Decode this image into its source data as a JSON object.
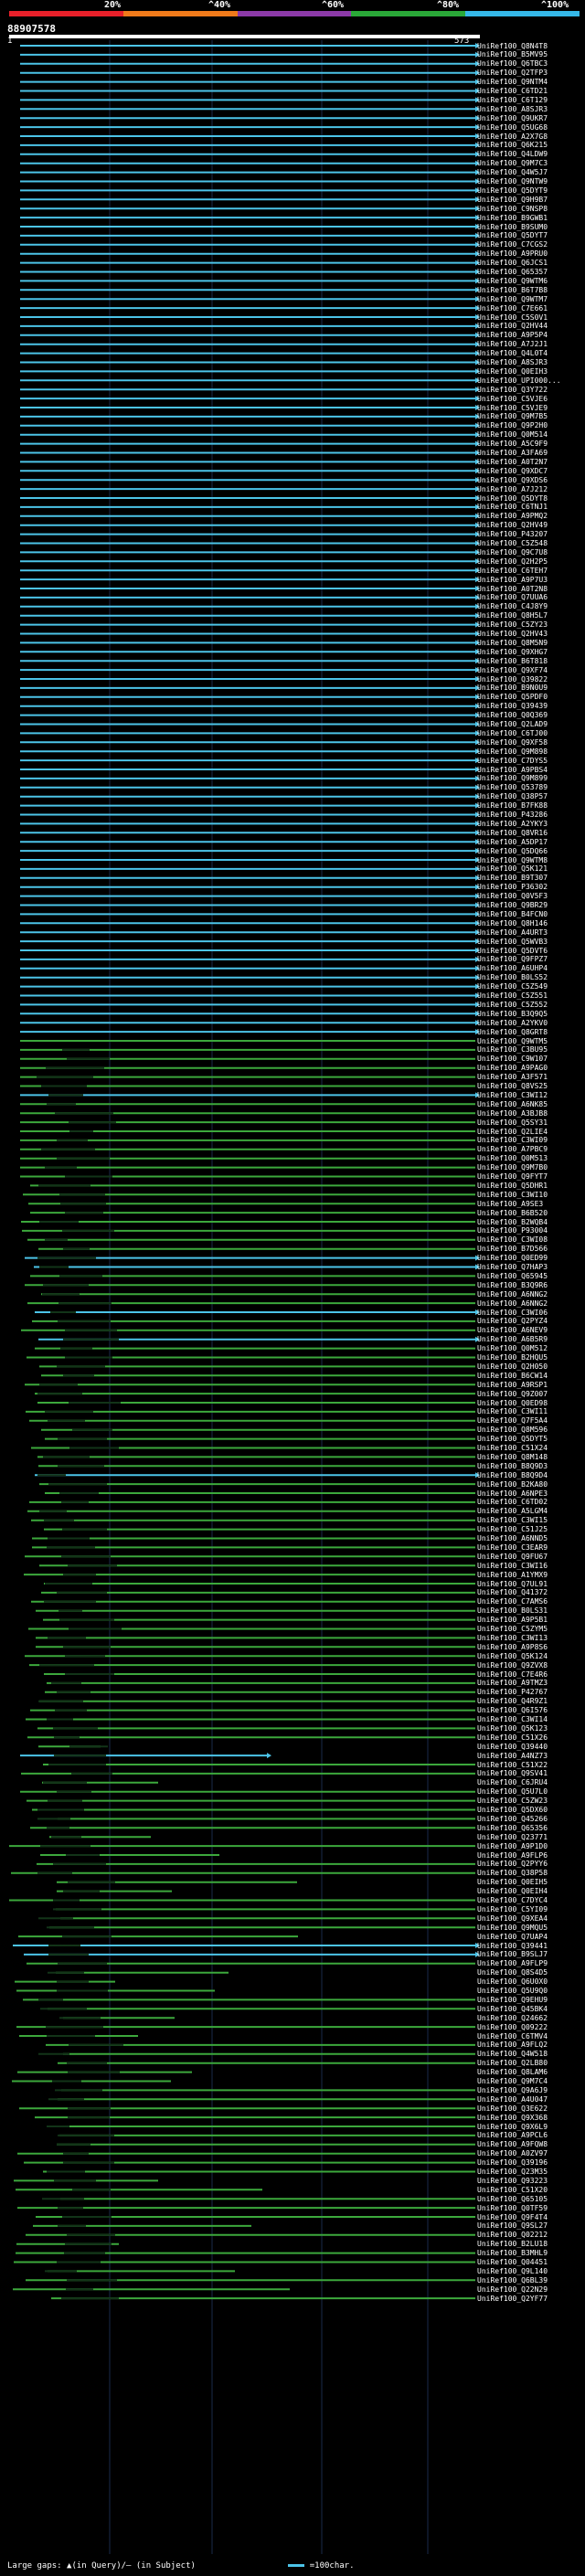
{
  "header": {
    "query_id": "88907578",
    "query_start": "1",
    "query_end": "573",
    "percent_labels": [
      "20%",
      "^40%",
      "^60%",
      "^80%",
      "^100%"
    ],
    "colors": [
      "#e8202a",
      "#f07a1a",
      "#8c3aa8",
      "#2aa838",
      "#35b8e8"
    ]
  },
  "hit_colors": {
    "high": "#4cc4e8",
    "mid": "#3ca83c",
    "dark": "#123418"
  },
  "hits": [
    "UniRef100_Q8N4T8",
    "UniRef100_B5MV95",
    "UniRef100_Q6TBC3",
    "UniRef100_Q2TFP3",
    "UniRef100_Q9NTM4",
    "UniRef100_C6TD21",
    "UniRef100_C6T129",
    "UniRef100_A8SJR3",
    "UniRef100_Q9UKR7",
    "UniRef100_Q5UG68",
    "UniRef100_A2X7G8",
    "UniRef100_Q6K215",
    "UniRef100_Q4LDW9",
    "UniRef100_Q9M7C3",
    "UniRef100_Q4W5J7",
    "UniRef100_Q9NTW9",
    "UniRef100_Q5DYT9",
    "UniRef100_Q9H9B7",
    "UniRef100_C9NSP8",
    "UniRef100_B9GWB1",
    "UniRef100_B9SUM0",
    "UniRef100_Q5DYT7",
    "UniRef100_C7CGS2",
    "UniRef100_A9PRU0",
    "UniRef100_Q6JCS1",
    "UniRef100_Q65357",
    "UniRef100_Q9WTM6",
    "UniRef100_B6T7B8",
    "UniRef100_Q9WTM7",
    "UniRef100_C7E661",
    "UniRef100_C5S0V1",
    "UniRef100_Q2HV44",
    "UniRef100_A9P5P4",
    "UniRef100_A7J2J1",
    "UniRef100_Q4L0T4",
    "UniRef100_A8SJR3",
    "UniRef100_Q0EIH3",
    "UniRef100_UPI000...",
    "UniRef100_Q3Y722",
    "UniRef100_C5VJE6",
    "UniRef100_C5VJE9",
    "UniRef100_Q9M7B5",
    "UniRef100_Q9P2H0",
    "UniRef100_Q0M514",
    "UniRef100_A5C9F9",
    "UniRef100_A3FA69",
    "UniRef100_A0T2N7",
    "UniRef100_Q9XDC7",
    "UniRef100_Q9XDS6",
    "UniRef100_A7J212",
    "UniRef100_Q5DYT8",
    "UniRef100_C6TNJ1",
    "UniRef100_A9PMQ2",
    "UniRef100_Q2HV49",
    "UniRef100_P43207",
    "UniRef100_C5Z548",
    "UniRef100_Q9C7U8",
    "UniRef100_Q2H2P5",
    "UniRef100_C6TEH7",
    "UniRef100_A9P7U3",
    "UniRef100_A0T2N8",
    "UniRef100_Q7UUA6",
    "UniRef100_C4J8Y9",
    "UniRef100_Q8H5L7",
    "UniRef100_C5ZY23",
    "UniRef100_Q2HV43",
    "UniRef100_Q8M5N9",
    "UniRef100_Q9XHG7",
    "UniRef100_B6T818",
    "UniRef100_Q9XF74",
    "UniRef100_Q39822",
    "UniRef100_B9N0U9",
    "UniRef100_Q5PDF0",
    "UniRef100_Q39439",
    "UniRef100_Q0Q369",
    "UniRef100_Q2LAD9",
    "UniRef100_C6TJ00",
    "UniRef100_Q9XF58",
    "UniRef100_Q9M898",
    "UniRef100_C7DYS5",
    "UniRef100_A9PBS4",
    "UniRef100_Q9M899",
    "UniRef100_Q53789",
    "UniRef100_Q38P57",
    "UniRef100_B7FK88",
    "UniRef100_P43286",
    "UniRef100_A2YKY3",
    "UniRef100_Q8VR16",
    "UniRef100_A5DP17",
    "UniRef100_Q5DQ66",
    "UniRef100_Q9WTM8",
    "UniRef100_Q5K121",
    "UniRef100_B9T307",
    "UniRef100_P36302",
    "UniRef100_Q0V5F3",
    "UniRef100_Q9BR29",
    "UniRef100_B4FCN0",
    "UniRef100_Q8H146",
    "UniRef100_A4URT3",
    "UniRef100_Q5WVB3",
    "UniRef100_Q5DVT6",
    "UniRef100_Q9FPZ7",
    "UniRef100_A6UHP4",
    "UniRef100_B0LS52",
    "UniRef100_C5Z549",
    "UniRef100_C5Z551",
    "UniRef100_C5Z552",
    "UniRef100_B3Q9Q5",
    "UniRef100_A2YKV0",
    "UniRef100_Q8GRT8",
    "UniRef100_Q9WTM5",
    "UniRef100_C3BU95",
    "UniRef100_C9W107",
    "UniRef100_A9PAG0",
    "UniRef100_A3F571",
    "UniRef100_Q8VS25",
    "UniRef100_C3WI12",
    "UniRef100_A6NK85",
    "UniRef100_A3BJB8",
    "UniRef100_Q5SY31",
    "UniRef100_Q2LIE4",
    "UniRef100_C3WI09",
    "UniRef100_A7PBC9",
    "UniRef100_Q0M513",
    "UniRef100_Q9M7B0",
    "UniRef100_Q9FYT7",
    "UniRef100_Q5DHR1",
    "UniRef100_C3WI10",
    "UniRef100_A9SE3",
    "UniRef100_B6B520",
    "UniRef100_B2WQB4",
    "UniRef100_P93004",
    "UniRef100_C3WI08",
    "UniRef100_B7D566",
    "UniRef100_Q0ED99",
    "UniRef100_Q7HAP3",
    "UniRef100_Q65945",
    "UniRef100_B3Q9R6",
    "UniRef100_A6NNG2",
    "UniRef100_A6NNG2",
    "UniRef100_C3WI06",
    "UniRef100_Q2PYZ4",
    "UniRef100_A6NEV9",
    "UniRef100_A6B5R9",
    "UniRef100_Q0M512",
    "UniRef100_B2HQU5",
    "UniRef100_Q2H050",
    "UniRef100_B6CW14",
    "UniRef100_A9RSP1",
    "UniRef100_Q9Z007",
    "UniRef100_Q0ED98",
    "UniRef100_C3WI11",
    "UniRef100_Q7F5A4",
    "UniRef100_Q8M596",
    "UniRef100_Q5DYT5",
    "UniRef100_C51X24",
    "UniRef100_Q8M148",
    "UniRef100_B8Q9D3",
    "UniRef100_B8Q9D4",
    "UniRef100_B2KA80",
    "UniRef100_A6NPE3",
    "UniRef100_C6TD02",
    "UniRef100_A5LGM4",
    "UniRef100_C3WI15",
    "UniRef100_C51J25",
    "UniRef100_A6NND5",
    "UniRef100_C3EAR9",
    "UniRef100_Q9FU67",
    "UniRef100_C3WI16",
    "UniRef100_A1YMX9",
    "UniRef100_Q7UL91",
    "UniRef100_Q41372",
    "UniRef100_C7AMS6",
    "UniRef100_B0LS31",
    "UniRef100_A9P5B1",
    "UniRef100_C5ZYM5",
    "UniRef100_C3WI13",
    "UniRef100_A9P8S6",
    "UniRef100_Q5K124",
    "UniRef100_Q9ZVX8",
    "UniRef100_C7E4R6",
    "UniRef100_A9TMZ3",
    "UniRef100_P42767",
    "UniRef100_Q4R9Z1",
    "UniRef100_Q6I576",
    "UniRef100_C3WI14",
    "UniRef100_Q5K123",
    "UniRef100_C51X26",
    "UniRef100_Q39440",
    "UniRef100_A4NZ73",
    "UniRef100_C51X22",
    "UniRef100_Q9SV41",
    "UniRef100_C6JRU4",
    "UniRef100_Q5U7L0",
    "UniRef100_C5ZW23",
    "UniRef100_Q5DX60",
    "UniRef100_Q45266",
    "UniRef100_Q65356",
    "UniRef100_Q23771",
    "UniRef100_A9P1D0",
    "UniRef100_A9FLP6",
    "UniRef100_Q2PYY6",
    "UniRef100_Q38P58",
    "UniRef100_Q0EIH5",
    "UniRef100_Q0EIH4",
    "UniRef100_C7DYC4",
    "UniRef100_C5YI09",
    "UniRef100_Q9XEA4",
    "UniRef100_Q9MQU5",
    "UniRef100_Q7UAP4",
    "UniRef100_Q39441",
    "UniRef100_B9SLJ7",
    "UniRef100_A9FLP9",
    "UniRef100_Q8S4D5",
    "UniRef100_Q6U0X0",
    "UniRef100_Q5U9Q0",
    "UniRef100_Q9EHU9",
    "UniRef100_Q45BK4",
    "UniRef100_Q24662",
    "UniRef100_Q09222",
    "UniRef100_C6TMV4",
    "UniRef100_A9FLQ2",
    "UniRef100_Q4W518",
    "UniRef100_Q2LB80",
    "UniRef100_Q8LAM6",
    "UniRef100_Q9M7C4",
    "UniRef100_Q9A6J9",
    "UniRef100_A4U047",
    "UniRef100_Q3E622",
    "UniRef100_Q9X368",
    "UniRef100_Q9X6L9",
    "UniRef100_A9PCL6",
    "UniRef100_A9FQW8",
    "UniRef100_A0ZV97",
    "UniRef100_Q39196",
    "UniRef100_Q23M35",
    "UniRef100_Q93223",
    "UniRef100_C51X20",
    "UniRef100_Q65105",
    "UniRef100_Q0TF59",
    "UniRef100_Q9F4T4",
    "UniRef100_Q9SL27",
    "UniRef100_Q02212",
    "UniRef100_B2LU18",
    "UniRef100_B3MHL9",
    "UniRef100_Q04451",
    "UniRef100_Q9L140",
    "UniRef100_Q6BL39",
    "UniRef100_Q22N29",
    "UniRef100_Q2YF77"
  ],
  "footer": {
    "text": "Large gaps: ▲(in Query)/— (in Subject)",
    "scale": "=100char."
  }
}
